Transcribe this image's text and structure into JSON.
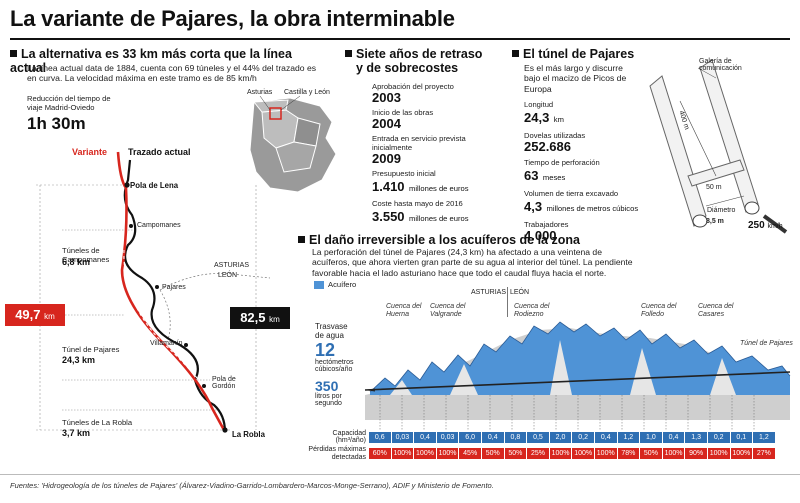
{
  "title": "La variante de Pajares, la obra interminable",
  "alternativa": {
    "heading": "La alternativa es 33 km más corta que la línea actual",
    "text": "La línea actual data de 1884, cuenta con 69 túneles y el 44% del trazado es en curva. La velocidad máxima en este tramo es de 85 km/h",
    "reduccion_label": "Reducción del tiempo de viaje Madrid-Oviedo",
    "reduccion_value": "1h 30m",
    "variante_label": "Variante",
    "trazado_label": "Trazado actual",
    "places": [
      "Pola de Lena",
      "Campomanes",
      "Pajares",
      "Villamanín",
      "Pola de Gordón",
      "La Robla"
    ],
    "tunel_comp_label": "Túneles de Campomanes",
    "tunel_comp_value": "6,8 km",
    "tunel_paj_label": "Túnel de Pajares",
    "tunel_paj_value": "24,3 km",
    "tunel_robla_label": "Túneles de La Robla",
    "tunel_robla_value": "3,7 km",
    "asturias": "ASTURIAS",
    "leon": "LEÓN",
    "variante_km": "49,7",
    "actual_km": "82,5",
    "km": "km",
    "map_asturias": "Asturias",
    "map_cyl": "Castilla y León"
  },
  "retraso": {
    "heading_line1": "Siete años de retraso",
    "heading_line2": "y de sobrecostes",
    "items": [
      {
        "label": "Aprobación del proyecto",
        "value": "2003",
        "unit": ""
      },
      {
        "label": "Inicio de las obras",
        "value": "2004",
        "unit": ""
      },
      {
        "label": "Entrada en servicio prevista inicialmente",
        "value": "2009",
        "unit": ""
      },
      {
        "label": "Presupuesto inicial",
        "value": "1.410",
        "unit": "millones de euros"
      },
      {
        "label": "Coste hasta mayo de 2016",
        "value": "3.550",
        "unit": "millones de euros"
      }
    ]
  },
  "tunel": {
    "heading": "El túnel de Pajares",
    "text": "Es el más largo y discurre bajo el macizo de Picos de Europa",
    "items": [
      {
        "label": "Longitud",
        "value": "24,3",
        "unit": "km"
      },
      {
        "label": "Dovelas utilizadas",
        "value": "252.686",
        "unit": ""
      },
      {
        "label": "Tiempo de perforación",
        "value": "63",
        "unit": "meses"
      },
      {
        "label": "Volumen de tierra excavado",
        "value": "4,3",
        "unit": "millones de metros cúbicos"
      },
      {
        "label": "Trabajadores",
        "value": "4.000",
        "unit": ""
      }
    ],
    "galeria": "Galería de comunicación",
    "dist_400": "400 m",
    "dist_50": "50 m",
    "diametro_label": "Diámetro",
    "diametro_value": "8,5 m",
    "speed_value": "250",
    "speed_unit": "km/h"
  },
  "dano": {
    "heading": "El daño irreversible a los acuíferos de la zona",
    "text": "La perforación del túnel de Pajares (24,3 km) ha afectado a una veintena de acuíferos, que ahora vierten gran parte de su agua al interior del túnel. La pendiente favorable hacia el lado asturiano hace que todo el caudal fluya hacia el norte.",
    "acuifero_label": "Acuífero",
    "asturias": "ASTURIAS",
    "leon": "LEÓN",
    "cuencas": [
      "Cuenca del Huerna",
      "Cuenca del Valgrande",
      "Cuenca del Rodiezno",
      "Cuenca del Folledo",
      "Cuenca del Casares"
    ],
    "tunel_label": "Túnel de Pajares",
    "trasvase_label": "Trasvase de agua",
    "trasvase_value": "12",
    "trasvase_unit": "hectómetros cúbicos/año",
    "litros_value": "350",
    "litros_unit": "litros por segundo",
    "capacidad_label": "Capacidad (hm³/año)",
    "perdidas_label": "Pérdidas máximas detectadas",
    "capacidad": [
      "0,6",
      "0,03",
      "0,4",
      "0,03",
      "6,0",
      "0,4",
      "0,8",
      "0,5",
      "2,0",
      "0,2",
      "0,4",
      "1,2",
      "1,0",
      "0,4",
      "1,3",
      "0,2",
      "0,1",
      "1,2"
    ],
    "perdidas": [
      "60%",
      "100%",
      "100%",
      "100%",
      "45%",
      "50%",
      "50%",
      "25%",
      "100%",
      "100%",
      "100%",
      "78%",
      "50%",
      "100%",
      "90%",
      "100%",
      "100%",
      "27%"
    ]
  },
  "fuentes": "Fuentes: 'Hidrogeología de los túneles de Pajares' (Álvarez-Viadino-Garrido-Lombardero-Marcos-Monge-Serrano), ADIF y Ministerio de Fomento.",
  "colors": {
    "red": "#d7261e",
    "blue": "#2f6fb3",
    "lightblue": "#4f93d6",
    "grey": "#c9c9c9"
  }
}
